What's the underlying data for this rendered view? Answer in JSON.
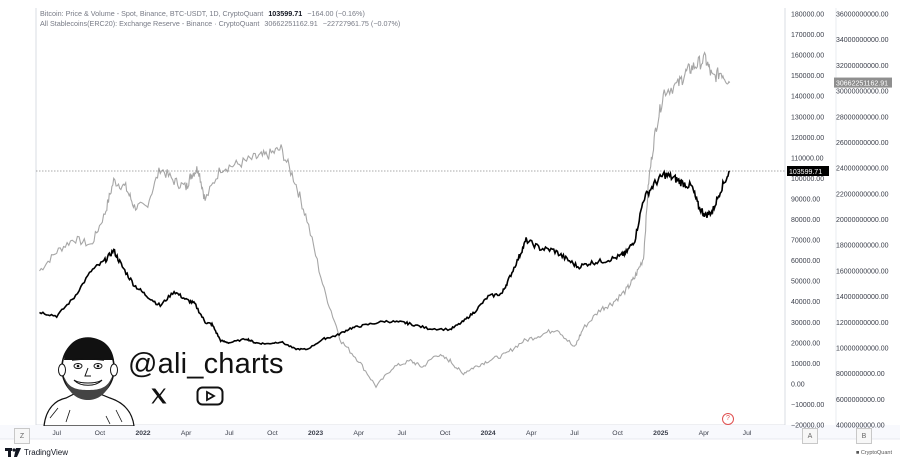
{
  "legend": {
    "btc_label": "Bitcoin: Price & Volume - Spot, Binance, BTC-USDT, 1D, CryptoQuant",
    "btc_value": "103599.71",
    "btc_change": "−164.00 (−0.16%)",
    "stable_label": "All Stablecoins(ERC20): Exchange Reserve - Binance · CryptoQuant",
    "stable_value": "30662251162.91",
    "stable_change": "−22727961.75 (−0.07%)"
  },
  "price_tag_btc": "103599.71",
  "price_tag_stable": "30662251162.91",
  "watermark": {
    "handle": "@ali_charts",
    "x_icon": "x-logo-icon",
    "video_icon": "play-button-icon"
  },
  "footer": {
    "brand": "TradingView",
    "source": "CryptoQuant"
  },
  "scale_buttons": {
    "left": "Z",
    "mid": "A",
    "right": "B"
  },
  "info_marker": "?",
  "colors": {
    "btc": "#000000",
    "stable": "#a6a6a6",
    "grid": "#f0f3fa",
    "tag_btc": "#000000",
    "tag_stable": "#8f8f8f"
  },
  "chart_data": {
    "type": "line",
    "x_ticks": [
      "Jul",
      "Oct",
      "2022",
      "Apr",
      "Jul",
      "Oct",
      "2023",
      "Apr",
      "Jul",
      "Oct",
      "2024",
      "Apr",
      "Jul",
      "Oct",
      "2025",
      "Apr",
      "Jul"
    ],
    "ylim_left": [
      -20000,
      180000
    ],
    "yticks_left": [
      "180000.00",
      "170000.00",
      "160000.00",
      "150000.00",
      "140000.00",
      "130000.00",
      "120000.00",
      "110000.00",
      "100000.00",
      "90000.00",
      "80000.00",
      "70000.00",
      "60000.00",
      "50000.00",
      "40000.00",
      "30000.00",
      "20000.00",
      "10000.00",
      "0.00",
      "−10000.00",
      "−20000.00"
    ],
    "ylim_right": [
      4000000000,
      36000000000
    ],
    "yticks_right": [
      "36000000000.00",
      "34000000000.00",
      "32000000000.00",
      "30000000000.00",
      "28000000000.00",
      "26000000000.00",
      "24000000000.00",
      "22000000000.00",
      "20000000000.00",
      "18000000000.00",
      "16000000000.00",
      "14000000000.00",
      "12000000000.00",
      "10000000000.00",
      "8000000000.00",
      "6000000000.00",
      "4000000000.00"
    ],
    "series": [
      {
        "name": "Bitcoin: Price & Volume - Spot, Binance, BTC-USDT, 1D, CryptoQuant",
        "axis": "left",
        "x": [
          2021.4,
          2021.5,
          2021.6,
          2021.7,
          2021.78,
          2021.83,
          2021.88,
          2021.95,
          2022.02,
          2022.1,
          2022.18,
          2022.25,
          2022.3,
          2022.36,
          2022.4,
          2022.45,
          2022.5,
          2022.6,
          2022.65,
          2022.72,
          2022.8,
          2022.88,
          2022.95,
          2023.05,
          2023.12,
          2023.2,
          2023.28,
          2023.4,
          2023.5,
          2023.55,
          2023.65,
          2023.78,
          2023.85,
          2023.92,
          2024.0,
          2024.08,
          2024.12,
          2024.18,
          2024.22,
          2024.3,
          2024.38,
          2024.45,
          2024.52,
          2024.6,
          2024.68,
          2024.76,
          2024.8,
          2024.85,
          2024.9,
          2024.96,
          2025.02,
          2025.08,
          2025.12,
          2025.18,
          2025.22,
          2025.26,
          2025.3,
          2025.35,
          2025.4
        ],
        "y": [
          35000,
          33000,
          42000,
          55000,
          60000,
          65000,
          57000,
          48000,
          43000,
          38000,
          45000,
          41000,
          39000,
          30000,
          29000,
          21000,
          20000,
          22000,
          20000,
          19500,
          20500,
          17000,
          16800,
          22000,
          23500,
          27000,
          28500,
          30500,
          30000,
          29200,
          27000,
          26500,
          30000,
          35000,
          42500,
          44000,
          51000,
          62000,
          70000,
          66000,
          65000,
          61000,
          57000,
          59000,
          60000,
          62000,
          64000,
          70000,
          90000,
          97000,
          102000,
          100000,
          98000,
          96000,
          86000,
          82000,
          84000,
          95000,
          103600
        ]
      },
      {
        "name": "All Stablecoins(ERC20): Exchange Reserve - Binance · CryptoQuant",
        "axis": "right",
        "x": [
          2021.4,
          2021.5,
          2021.6,
          2021.7,
          2021.78,
          2021.83,
          2021.9,
          2021.95,
          2022.02,
          2022.1,
          2022.18,
          2022.25,
          2022.28,
          2022.32,
          2022.36,
          2022.45,
          2022.55,
          2022.65,
          2022.72,
          2022.8,
          2022.88,
          2022.95,
          2023.05,
          2023.15,
          2023.25,
          2023.35,
          2023.45,
          2023.55,
          2023.62,
          2023.7,
          2023.78,
          2023.85,
          2023.92,
          2024.0,
          2024.1,
          2024.2,
          2024.3,
          2024.4,
          2024.5,
          2024.55,
          2024.65,
          2024.72,
          2024.8,
          2024.85,
          2024.9,
          2024.93,
          2024.97,
          2025.02,
          2025.1,
          2025.15,
          2025.2,
          2025.26,
          2025.3,
          2025.35,
          2025.4
        ],
        "y": [
          16000000000,
          17500000000,
          18500000000,
          18000000000,
          20500000000,
          23000000000,
          22500000000,
          21000000000,
          21000000000,
          24000000000,
          23000000000,
          22500000000,
          23500000000,
          24000000000,
          21500000000,
          24000000000,
          24300000000,
          24800000000,
          25000000000,
          25500000000,
          23000000000,
          20000000000,
          14500000000,
          10500000000,
          9000000000,
          7000000000,
          8500000000,
          9000000000,
          8500000000,
          9500000000,
          9000000000,
          8000000000,
          8500000000,
          9000000000,
          9500000000,
          10500000000,
          11000000000,
          11500000000,
          10000000000,
          11500000000,
          13000000000,
          13500000000,
          14500000000,
          15500000000,
          17000000000,
          23000000000,
          27000000000,
          30000000000,
          30500000000,
          31500000000,
          32000000000,
          32500000000,
          31000000000,
          31500000000,
          30662251162
        ]
      }
    ],
    "current_btc": 103599.71,
    "current_stable": 30662251162.91
  }
}
